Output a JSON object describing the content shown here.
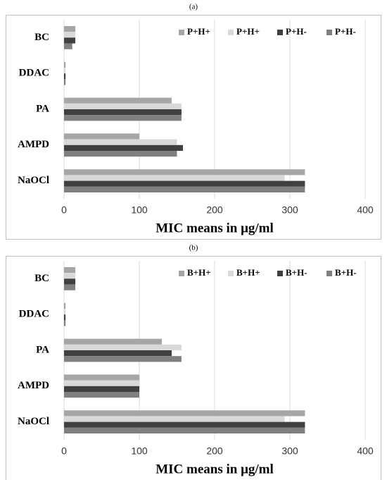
{
  "chart_data": [
    {
      "type": "bar",
      "orientation": "horizontal",
      "label": "(a)",
      "categories": [
        "BC",
        "DDAC",
        "PA",
        "AMPD",
        "NaOCl"
      ],
      "series": [
        {
          "name": "P+H+",
          "color": "#a6a6a6",
          "values": [
            15,
            2,
            143,
            100,
            320
          ]
        },
        {
          "name": "P+H+",
          "color": "#d9d9d9",
          "values": [
            15,
            2,
            156,
            150,
            293
          ]
        },
        {
          "name": "P+H-",
          "color": "#404040",
          "values": [
            15,
            2,
            156,
            158,
            320
          ]
        },
        {
          "name": "P+H-",
          "color": "#808080",
          "values": [
            11,
            2,
            156,
            150,
            320
          ]
        }
      ],
      "xlabel": "MIC means in μg/ml",
      "xlim": [
        0,
        400
      ],
      "xticks": [
        0,
        100,
        200,
        300,
        400
      ],
      "grid": true,
      "legend": "top-right"
    },
    {
      "type": "bar",
      "orientation": "horizontal",
      "label": "(b)",
      "categories": [
        "BC",
        "DDAC",
        "PA",
        "AMPD",
        "NaOCl"
      ],
      "series": [
        {
          "name": "B+H+",
          "color": "#a6a6a6",
          "values": [
            15,
            2,
            130,
            100,
            320
          ]
        },
        {
          "name": "B+H+",
          "color": "#d9d9d9",
          "values": [
            15,
            2,
            156,
            100,
            293
          ]
        },
        {
          "name": "B+H-",
          "color": "#404040",
          "values": [
            15,
            2,
            143,
            100,
            320
          ]
        },
        {
          "name": "B+H-",
          "color": "#808080",
          "values": [
            15,
            2,
            156,
            100,
            320
          ]
        }
      ],
      "xlabel": "MIC means in μg/ml",
      "xlim": [
        0,
        400
      ],
      "xticks": [
        0,
        100,
        200,
        300,
        400
      ],
      "grid": true,
      "legend": "top-right"
    }
  ]
}
